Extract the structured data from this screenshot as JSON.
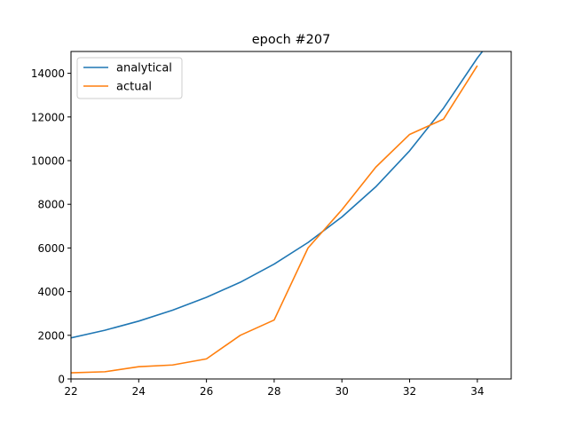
{
  "chart_data": {
    "type": "line",
    "title": "epoch #207",
    "xlabel": "",
    "ylabel": "",
    "xlim": [
      22,
      35
    ],
    "ylim": [
      0,
      15000
    ],
    "x_ticks": [
      22,
      24,
      26,
      28,
      30,
      32,
      34
    ],
    "y_ticks": [
      0,
      2000,
      4000,
      6000,
      8000,
      10000,
      12000,
      14000
    ],
    "grid": false,
    "legend_position": "top-left",
    "series": [
      {
        "name": "analytical",
        "color": "#1f77b4",
        "x": [
          22,
          23,
          24,
          25,
          26,
          27,
          28,
          29,
          30,
          31,
          32,
          33,
          34,
          34.15
        ],
        "y": [
          1880,
          2230,
          2650,
          3150,
          3740,
          4430,
          5260,
          6250,
          7420,
          8800,
          10450,
          12400,
          14700,
          15000
        ]
      },
      {
        "name": "actual",
        "color": "#ff7f0e",
        "x": [
          22,
          23,
          24,
          25,
          26,
          27,
          28,
          29,
          30,
          31,
          32,
          33,
          34
        ],
        "y": [
          280,
          330,
          560,
          640,
          920,
          2000,
          2700,
          6000,
          7750,
          9700,
          11200,
          11900,
          14350
        ]
      }
    ]
  }
}
